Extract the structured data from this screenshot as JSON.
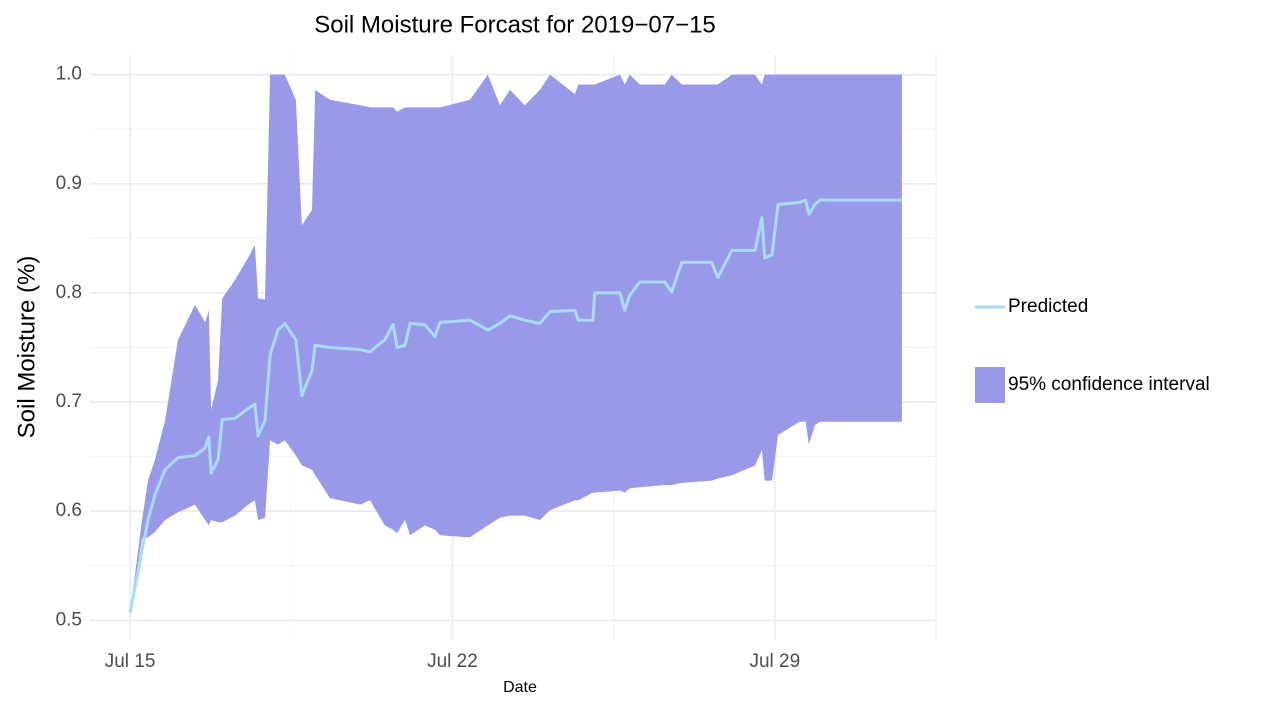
{
  "chart_data": {
    "type": "line",
    "title": "Soil Moisture Forcast for 2019−07−15",
    "x_label": "Date",
    "y_label": "Soil Moisture (%)",
    "x": [
      15,
      15.26,
      15.39,
      15.54,
      15.76,
      16.04,
      16.41,
      16.63,
      16.71,
      16.76,
      16.91,
      17.0,
      17.28,
      17.56,
      17.71,
      17.78,
      17.93,
      18.04,
      18.21,
      18.36,
      18.6,
      18.73,
      18.95,
      19.02,
      19.34,
      20.0,
      20.21,
      20.53,
      20.71,
      20.8,
      20.97,
      21.08,
      21.4,
      21.62,
      21.73,
      22.38,
      22.77,
      23.03,
      23.25,
      23.57,
      23.9,
      24.12,
      24.66,
      24.73,
      25.05,
      25.09,
      25.64,
      25.74,
      25.85,
      26.07,
      26.61,
      26.76,
      26.98,
      27.63,
      27.76,
      28.07,
      28.57,
      28.72,
      28.78,
      28.94,
      29.07,
      29.54,
      29.67,
      29.74,
      29.87,
      29.98,
      31.76
    ],
    "series": [
      {
        "name": "Predicted",
        "color": "#a8dcf5",
        "values": [
          0.507,
          0.564,
          0.592,
          0.615,
          0.638,
          0.649,
          0.651,
          0.658,
          0.668,
          0.635,
          0.647,
          0.684,
          0.685,
          0.694,
          0.698,
          0.669,
          0.683,
          0.743,
          0.766,
          0.772,
          0.757,
          0.706,
          0.729,
          0.752,
          0.75,
          0.748,
          0.746,
          0.757,
          0.771,
          0.75,
          0.752,
          0.772,
          0.771,
          0.76,
          0.773,
          0.775,
          0.766,
          0.772,
          0.779,
          0.775,
          0.772,
          0.783,
          0.784,
          0.775,
          0.775,
          0.8,
          0.8,
          0.784,
          0.798,
          0.81,
          0.81,
          0.801,
          0.828,
          0.828,
          0.814,
          0.839,
          0.839,
          0.869,
          0.832,
          0.835,
          0.881,
          0.883,
          0.885,
          0.872,
          0.881,
          0.885,
          0.885
        ]
      },
      {
        "name": "95% confidence interval",
        "type": "band",
        "color": "#9999ea",
        "upper": [
          0.507,
          0.592,
          0.628,
          0.647,
          0.683,
          0.757,
          0.789,
          0.773,
          0.784,
          0.693,
          0.72,
          0.795,
          0.812,
          0.832,
          0.844,
          0.795,
          0.794,
          1,
          1,
          1,
          0.977,
          0.862,
          0.876,
          0.986,
          0.977,
          0.972,
          0.97,
          0.97,
          0.97,
          0.966,
          0.97,
          0.97,
          0.97,
          0.97,
          0.97,
          0.977,
          1,
          0.972,
          0.986,
          0.972,
          0.986,
          1,
          0.982,
          0.991,
          0.991,
          0.991,
          1,
          0.991,
          1,
          0.991,
          0.991,
          1,
          0.991,
          0.991,
          0.991,
          1,
          1,
          0.991,
          1,
          1,
          1,
          1,
          1,
          1,
          1,
          1,
          1
        ],
        "lower": [
          0.507,
          0.575,
          0.576,
          0.581,
          0.592,
          0.599,
          0.606,
          0.592,
          0.587,
          0.592,
          0.59,
          0.59,
          0.596,
          0.606,
          0.61,
          0.592,
          0.594,
          0.665,
          0.661,
          0.665,
          0.651,
          0.642,
          0.638,
          0.633,
          0.612,
          0.606,
          0.61,
          0.587,
          0.583,
          0.58,
          0.592,
          0.578,
          0.587,
          0.583,
          0.578,
          0.576,
          0.587,
          0.594,
          0.596,
          0.596,
          0.592,
          0.601,
          0.61,
          0.61,
          0.617,
          0.617,
          0.619,
          0.617,
          0.621,
          0.622,
          0.624,
          0.624,
          0.626,
          0.628,
          0.63,
          0.633,
          0.642,
          0.656,
          0.628,
          0.628,
          0.67,
          0.682,
          0.682,
          0.661,
          0.679,
          0.682,
          0.682
        ]
      }
    ],
    "xlim": [
      14.13,
      32.5
    ],
    "xticks": [
      {
        "value": 15,
        "label": "Jul 15"
      },
      {
        "value": 22,
        "label": "Jul 22"
      },
      {
        "value": 29,
        "label": "Jul 29"
      }
    ],
    "ylim": [
      0.482,
      1.018
    ],
    "yticks": [
      0.5,
      0.6,
      0.7,
      0.8,
      0.9,
      {
        "value": 1,
        "label": "1.0"
      }
    ],
    "grid": true,
    "legend": "right"
  }
}
